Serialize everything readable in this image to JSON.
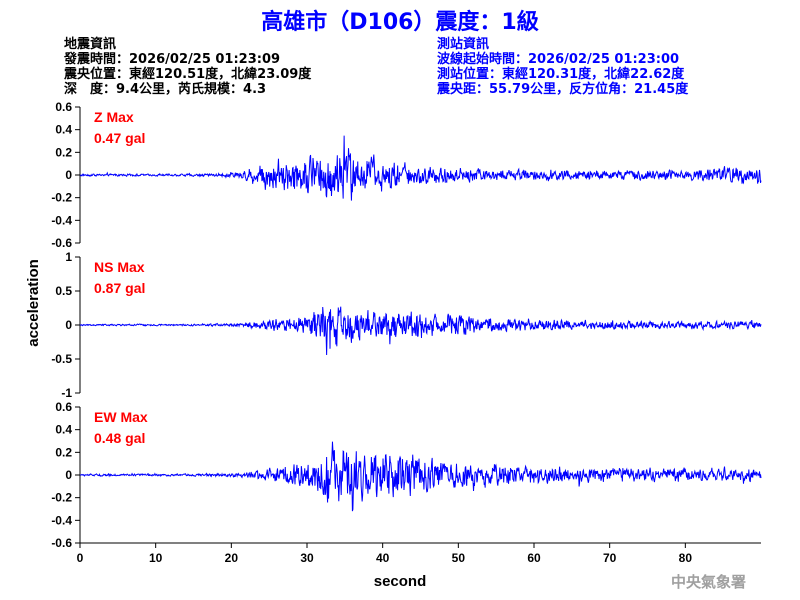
{
  "title": "高雄市（D106）震度：1級",
  "quake_info": {
    "heading": "地震資訊",
    "time": "發震時間：2026/02/25 01:23:09",
    "location": "震央位置：東經120.51度，北緯23.09度",
    "depth_magnitude": "深　度：9.4公里，芮氏規模：4.3"
  },
  "station_info": {
    "heading": "測站資訊",
    "start_time": "波線起始時間：2026/02/25 01:23:00",
    "location": "測站位置：東經120.31度，北緯22.62度",
    "distance": "震央距：55.79公里，反方位角：21.45度"
  },
  "footer": "中央氣象署",
  "colors": {
    "title": "#0000ff",
    "trace": "#0000ff",
    "label": "#ff0000"
  },
  "chart_data": {
    "type": "line",
    "xlabel": "second",
    "ylabel": "acceleration",
    "xlim": [
      0,
      90
    ],
    "x_ticks": [
      0,
      10,
      20,
      30,
      40,
      50,
      60,
      70,
      80
    ],
    "panels": [
      {
        "component": "Z",
        "label": "Z Max",
        "max_label": "0.47 gal",
        "max": 0.47,
        "ylim": [
          -0.6,
          0.6
        ],
        "y_ticks": [
          0.6,
          0.4,
          0.2,
          0,
          -0.2,
          -0.4,
          -0.6
        ],
        "y_tick_labels": [
          "0.6",
          "0.4",
          "0.2",
          "0",
          "-0.2",
          "-0.4",
          "-0.6"
        ],
        "envelope": {
          "times": [
            0,
            10,
            18,
            21,
            23,
            25,
            28,
            31,
            34,
            35,
            37,
            40,
            45,
            50,
            60,
            70,
            80,
            86,
            90
          ],
          "amps": [
            0.015,
            0.015,
            0.02,
            0.05,
            0.13,
            0.2,
            0.22,
            0.28,
            0.38,
            0.42,
            0.3,
            0.2,
            0.13,
            0.1,
            0.07,
            0.06,
            0.07,
            0.11,
            0.13
          ]
        }
      },
      {
        "component": "NS",
        "label": "NS Max",
        "max_label": "0.87 gal",
        "max": 0.87,
        "ylim": [
          -1,
          1
        ],
        "y_ticks": [
          1,
          0.5,
          0,
          -0.5,
          -1
        ],
        "y_tick_labels": [
          "1",
          "0.5",
          "0",
          "-0.5",
          "-1"
        ],
        "envelope": {
          "times": [
            0,
            15,
            21,
            23,
            26,
            29,
            31,
            33,
            35,
            38,
            42,
            46,
            50,
            55,
            60,
            70,
            80,
            90
          ],
          "amps": [
            0.02,
            0.02,
            0.04,
            0.08,
            0.14,
            0.2,
            0.3,
            0.7,
            0.4,
            0.3,
            0.42,
            0.3,
            0.22,
            0.16,
            0.12,
            0.09,
            0.08,
            0.08
          ]
        }
      },
      {
        "component": "EW",
        "label": "EW Max",
        "max_label": "0.48 gal",
        "max": 0.48,
        "ylim": [
          -0.6,
          0.6
        ],
        "y_ticks": [
          0.6,
          0.4,
          0.2,
          0,
          -0.2,
          -0.4,
          -0.6
        ],
        "y_tick_labels": [
          "0.6",
          "0.4",
          "0.2",
          "0",
          "-0.2",
          "-0.4",
          "-0.6"
        ],
        "envelope": {
          "times": [
            0,
            15,
            20,
            23,
            26,
            29,
            31,
            33,
            35,
            37,
            40,
            44,
            47,
            52,
            58,
            65,
            75,
            85,
            90
          ],
          "amps": [
            0.015,
            0.015,
            0.025,
            0.05,
            0.1,
            0.16,
            0.25,
            0.42,
            0.4,
            0.32,
            0.3,
            0.27,
            0.2,
            0.16,
            0.13,
            0.11,
            0.09,
            0.08,
            0.08
          ]
        }
      }
    ]
  }
}
